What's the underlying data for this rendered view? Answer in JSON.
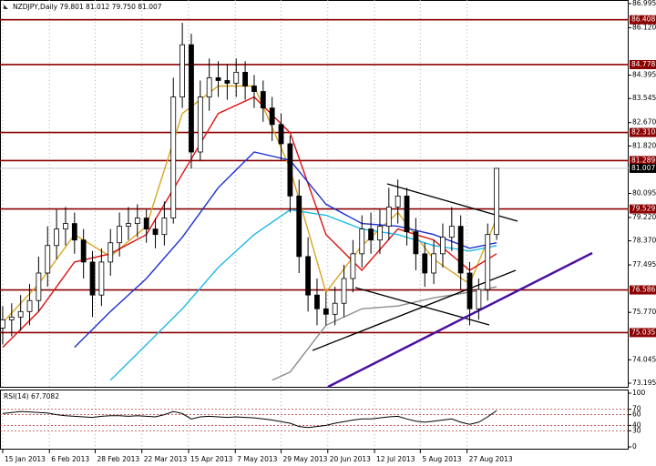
{
  "chart_data": {
    "type": "candlestick",
    "title": "NZDJPY,Daily  79.801 81.012 79.750 81.007",
    "grid": true,
    "ylim": [
      73.063,
      87.127
    ],
    "yticks": [
      86.995,
      {
        "value": 86.12,
        "label": "86.120"
      },
      84.395,
      83.545,
      {
        "value": 82.67,
        "label": "82.670"
      },
      {
        "value": 81.82,
        "label": "81.820"
      },
      80.095,
      {
        "value": 79.22,
        "label": "79.220"
      },
      {
        "value": 78.37,
        "label": "78.370"
      },
      77.495,
      {
        "value": 75.77,
        "label": "75.770"
      },
      74.045,
      73.195
    ],
    "xlim": [
      -0.3,
      69.7
    ],
    "xticks": [
      {
        "value": 0,
        "label": "15 Jan 2013"
      },
      {
        "value": 5.2,
        "label": "6 Feb 2013"
      },
      {
        "value": 10.3,
        "label": "28 Feb 2013"
      },
      {
        "value": 15.5,
        "label": "22 Mar 2013"
      },
      {
        "value": 20.7,
        "label": "15 Apr 2013"
      },
      {
        "value": 25.9,
        "label": "7 May 2013"
      },
      {
        "value": 31,
        "label": "29 May 2013"
      },
      {
        "value": 36.2,
        "label": "20 Jun 2013"
      },
      {
        "value": 41.4,
        "label": "12 Jul 2013"
      },
      {
        "value": 46.5,
        "label": "5 Aug 2013"
      },
      {
        "value": 51.7,
        "label": "27 Aug 2013"
      }
    ],
    "candle_color": "#000000",
    "open": [
      75.2,
      75.5,
      75.6,
      75.8,
      76.2,
      77.2,
      78.2,
      78.8,
      79.0,
      78.4,
      77.6,
      76.4,
      77.6,
      78.3,
      78.9,
      79.0,
      79.2,
      78.8,
      78.6,
      79.2,
      83.6,
      85.5,
      81.6,
      83.6,
      84.3,
      84.2,
      84.1,
      84.5,
      84.0,
      83.8,
      83.2,
      82.6,
      81.9,
      80.0,
      77.8,
      76.4,
      75.9,
      75.7,
      76.1,
      77.0,
      77.9,
      78.8,
      78.4,
      78.9,
      79.6,
      80.0,
      78.7,
      77.9,
      77.2,
      77.9,
      78.5,
      78.9,
      77.2,
      75.9,
      76.6,
      78.6
    ],
    "high": [
      76.0,
      76.1,
      76.4,
      76.8,
      77.8,
      78.9,
      79.5,
      79.6,
      79.4,
      78.8,
      78.0,
      78.1,
      78.8,
      79.4,
      79.6,
      79.7,
      79.5,
      79.2,
      79.8,
      84.3,
      86.3,
      85.9,
      84.2,
      85.0,
      84.9,
      84.8,
      85.0,
      84.9,
      84.4,
      84.2,
      83.6,
      83.0,
      82.2,
      80.6,
      78.5,
      77.0,
      76.5,
      76.7,
      77.5,
      78.4,
      79.3,
      79.4,
      79.5,
      80.3,
      80.6,
      80.3,
      79.2,
      78.3,
      78.4,
      79.0,
      79.6,
      79.3,
      77.6,
      77.0,
      79.0,
      81.012
    ],
    "low": [
      74.6,
      74.9,
      75.1,
      75.3,
      75.8,
      76.7,
      77.7,
      78.2,
      77.9,
      77.0,
      75.6,
      76.0,
      77.1,
      77.8,
      78.4,
      78.5,
      78.3,
      78.1,
      78.2,
      79.0,
      83.2,
      81.0,
      81.3,
      83.1,
      83.6,
      83.5,
      83.6,
      83.5,
      83.2,
      82.7,
      82.0,
      81.3,
      79.4,
      77.2,
      75.8,
      75.3,
      75.3,
      75.3,
      75.6,
      76.5,
      77.4,
      77.9,
      77.9,
      78.4,
      79.0,
      78.2,
      77.3,
      76.7,
      76.8,
      77.4,
      78.0,
      76.6,
      75.3,
      75.5,
      76.2,
      78.4
    ],
    "close": [
      75.5,
      75.6,
      75.8,
      76.2,
      77.2,
      78.2,
      78.8,
      79.0,
      78.4,
      77.6,
      76.4,
      77.6,
      78.3,
      78.9,
      79.0,
      79.2,
      78.8,
      78.6,
      79.2,
      83.6,
      85.5,
      81.6,
      83.6,
      84.3,
      84.2,
      84.1,
      84.5,
      84.0,
      83.8,
      83.2,
      82.6,
      81.9,
      80.0,
      77.8,
      76.4,
      75.9,
      75.7,
      76.1,
      77.0,
      77.9,
      78.8,
      78.4,
      78.9,
      79.6,
      80.0,
      78.7,
      77.9,
      77.2,
      77.9,
      78.5,
      78.9,
      77.2,
      75.9,
      76.6,
      78.6,
      81.007
    ],
    "indicators": [
      {
        "color": "#daa520",
        "x": [
          0,
          4,
          8,
          12,
          16,
          20,
          24,
          28,
          32,
          36,
          40,
          44,
          48,
          52,
          55
        ],
        "values": [
          75.4,
          76.8,
          78.6,
          77.8,
          78.9,
          83.0,
          84.0,
          84.0,
          81.0,
          76.5,
          78.2,
          79.4,
          77.7,
          76.8,
          79.2
        ]
      },
      {
        "color": "#dd1111",
        "x": [
          0,
          4,
          8,
          12,
          16,
          20,
          24,
          28,
          32,
          36,
          40,
          44,
          48,
          52,
          55
        ],
        "values": [
          74.5,
          75.8,
          77.6,
          77.9,
          78.6,
          80.8,
          83.0,
          83.6,
          82.3,
          78.6,
          77.3,
          78.8,
          78.4,
          77.3,
          77.9
        ]
      },
      {
        "color": "#1a2fd0",
        "x": [
          8,
          12,
          16,
          20,
          24,
          28,
          32,
          36,
          40,
          44,
          48,
          52,
          55
        ],
        "values": [
          74.5,
          75.8,
          77.0,
          78.5,
          80.3,
          81.6,
          81.3,
          79.7,
          79.0,
          78.9,
          78.6,
          78.1,
          78.3
        ]
      },
      {
        "color": "#1fb8e8",
        "x": [
          12,
          16,
          20,
          24,
          28,
          32,
          36,
          40,
          44,
          48,
          52,
          55
        ],
        "values": [
          73.3,
          74.6,
          75.9,
          77.4,
          78.6,
          79.5,
          79.3,
          78.8,
          78.6,
          78.2,
          78.0,
          78.2
        ]
      },
      {
        "color": "#8c8c8c",
        "x": [
          30,
          32,
          36,
          40,
          44,
          48,
          52,
          55
        ],
        "values": [
          73.3,
          73.6,
          75.3,
          75.9,
          76.0,
          76.3,
          76.5,
          76.7
        ]
      }
    ],
    "levels": [
      86.408,
      84.778,
      {
        "value": 82.31,
        "label": "82.310"
      },
      81.289,
      79.529,
      76.586,
      75.035
    ],
    "level_color": "#8b0000",
    "last_price": 81.007,
    "rsi": {
      "title": "RSI(14) 67.7082",
      "ylim": [
        0,
        100
      ],
      "yticks": [
        100,
        70,
        60,
        40,
        30,
        0
      ],
      "color": "#000000",
      "values": [
        62,
        64,
        66,
        65,
        64,
        63,
        60,
        58,
        57,
        56,
        55,
        57,
        58,
        58,
        57,
        58,
        57,
        56,
        60,
        66,
        62,
        52,
        56,
        57,
        56,
        55,
        56,
        55,
        54,
        52,
        50,
        47,
        44,
        38,
        36,
        38,
        40,
        44,
        47,
        50,
        52,
        52,
        54,
        56,
        57,
        52,
        48,
        46,
        48,
        50,
        52,
        46,
        42,
        46,
        56,
        67.7082
      ]
    }
  }
}
